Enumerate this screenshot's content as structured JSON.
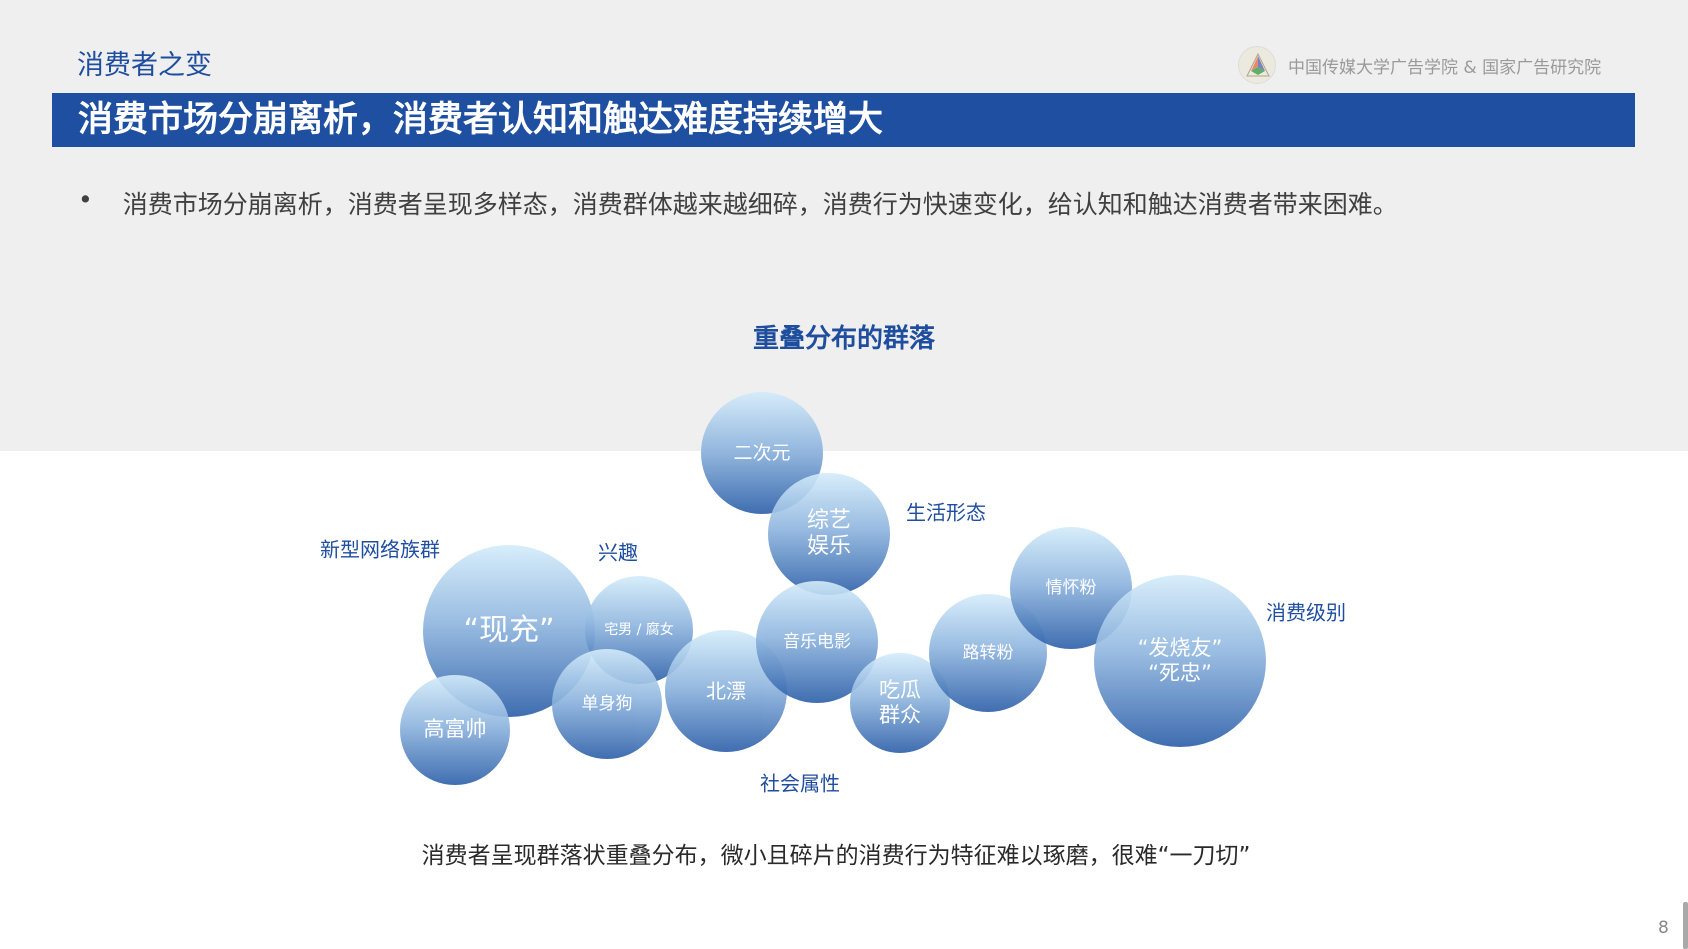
{
  "header": {
    "section": "消费者之变",
    "org": "中国传媒大学广告学院 & 国家广告研究院",
    "title": "消费市场分崩离析，消费者认知和触达难度持续增大"
  },
  "bullet": {
    "marker": "•",
    "text": "消费市场分崩离析，消费者呈现多样态，消费群体越来越细碎，消费行为快速变化，给认知和触达消费者带来困难。"
  },
  "diagram": {
    "title": "重叠分布的群落",
    "categories": [
      "新型网络族群",
      "兴趣",
      "生活形态",
      "消费级别",
      "社会属性"
    ],
    "bubbles": [
      {
        "label": "二次元"
      },
      {
        "label": "综艺\n娱乐"
      },
      {
        "label": "“现充”"
      },
      {
        "label": "宅男 / 腐女"
      },
      {
        "label": "高富帅"
      },
      {
        "label": "单身狗"
      },
      {
        "label": "北漂"
      },
      {
        "label": "音乐电影"
      },
      {
        "label": "吃瓜\n群众"
      },
      {
        "label": "路转粉"
      },
      {
        "label": "情怀粉"
      },
      {
        "label": "“发烧友”\n“死忠”"
      }
    ],
    "caption": "消费者呈现群落状重叠分布，微小且碎片的消费行为特征难以琢磨，很难“一刀切”"
  },
  "footer": {
    "page": "8"
  },
  "colors": {
    "brand": "#1e4fa0",
    "background": "#efefef"
  }
}
